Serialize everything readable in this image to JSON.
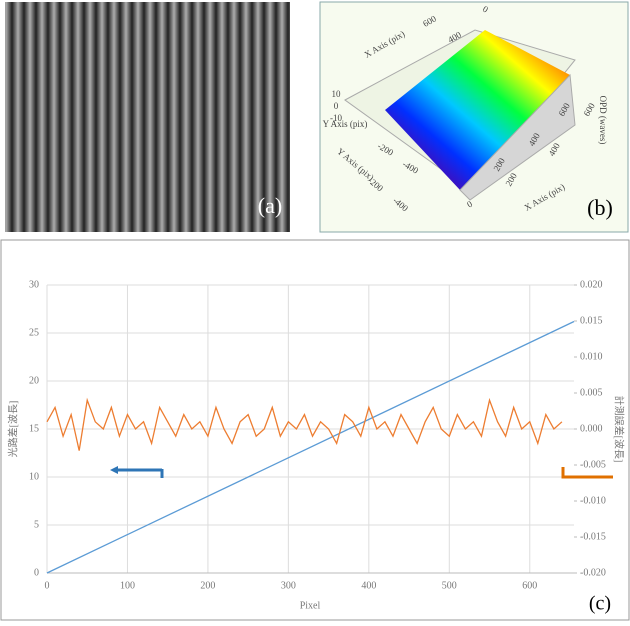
{
  "panels": {
    "a": {
      "label": "(a)"
    },
    "b": {
      "label": "(b)",
      "texts": [
        "X Axis (pix)",
        "600",
        "400",
        "Y Axis (pix)",
        "-200",
        "-400",
        "10",
        "0",
        "-10",
        "OPD (waves)",
        "200",
        "400",
        "600",
        "X Axis (pix)",
        "Y Axis (pix)",
        "-200",
        "-400",
        "0",
        "200",
        "400",
        "600",
        "0"
      ]
    }
  },
  "chart_data": {
    "type": "line",
    "label": "(c)",
    "x_label": "Pixel",
    "y_label": "光路差[波長]",
    "y2_label": "計測誤差[波長]",
    "xlim": [
      0,
      655
    ],
    "xticks": [
      0,
      100,
      200,
      300,
      400,
      500,
      600
    ],
    "ylim": [
      0,
      30
    ],
    "yticks": [
      0,
      5,
      10,
      15,
      20,
      25,
      30
    ],
    "y2lim": [
      -0.02,
      0.02
    ],
    "y2ticks": [
      {
        "value": -0.02,
        "label": "-0.020"
      },
      {
        "value": -0.015,
        "label": "-0.015"
      },
      {
        "value": -0.01,
        "label": "-0.010"
      },
      {
        "value": -0.005,
        "label": "-0.005"
      },
      {
        "value": 0,
        "label": "0.000"
      },
      {
        "value": 0.005,
        "label": "0.005"
      },
      {
        "value": 0.01,
        "label": "0.010"
      },
      {
        "value": 0.015,
        "label": "0.015"
      },
      {
        "value": 0.02,
        "label": "0.020"
      }
    ],
    "grid": true,
    "series": [
      {
        "color": "#5b9bd5",
        "x": [
          0,
          655
        ],
        "values": [
          0,
          26.2
        ]
      },
      {
        "color": "#ed7d31",
        "axis": "y2",
        "x": [
          0,
          10,
          20,
          30,
          40,
          50,
          60,
          70,
          80,
          90,
          100,
          110,
          120,
          130,
          140,
          150,
          160,
          170,
          180,
          190,
          200,
          210,
          220,
          230,
          240,
          250,
          260,
          270,
          280,
          290,
          300,
          310,
          320,
          330,
          340,
          350,
          360,
          370,
          380,
          390,
          400,
          410,
          420,
          430,
          440,
          450,
          460,
          470,
          480,
          490,
          500,
          510,
          520,
          530,
          540,
          550,
          560,
          570,
          580,
          590,
          600,
          610,
          620,
          630,
          640
        ],
        "values": [
          0.001,
          0.003,
          -0.001,
          0.002,
          -0.003,
          0.004,
          0.001,
          0.0,
          0.003,
          -0.001,
          0.002,
          0.0,
          0.001,
          -0.002,
          0.003,
          0.001,
          -0.001,
          0.002,
          0.0,
          0.001,
          -0.001,
          0.003,
          0.0,
          -0.002,
          0.001,
          0.002,
          -0.001,
          0.0,
          0.003,
          -0.001,
          0.001,
          0.0,
          0.002,
          -0.001,
          0.001,
          0.0,
          -0.002,
          0.002,
          0.001,
          -0.001,
          0.003,
          0.0,
          0.001,
          -0.001,
          0.002,
          0.0,
          -0.002,
          0.001,
          0.003,
          0.0,
          -0.001,
          0.002,
          0.0,
          0.001,
          -0.001,
          0.004,
          0.001,
          -0.001,
          0.003,
          0.0,
          0.001,
          -0.002,
          0.002,
          0.0,
          0.001
        ]
      }
    ]
  }
}
